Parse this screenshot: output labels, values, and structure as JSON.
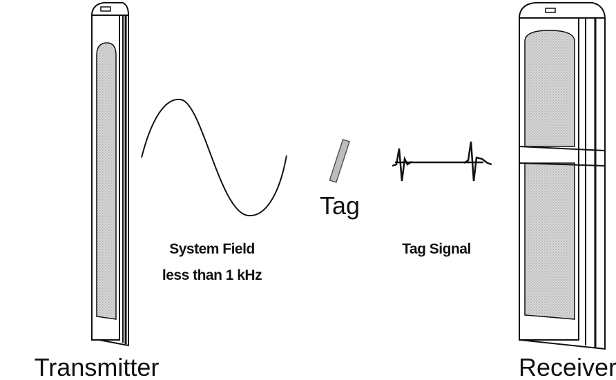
{
  "labels": {
    "transmitter": "Transmitter",
    "receiver": "Receiver",
    "tag": "Tag",
    "system_field": [
      "System Field",
      "less than 1 kHz"
    ],
    "tag_signal": "Tag Signal"
  }
}
